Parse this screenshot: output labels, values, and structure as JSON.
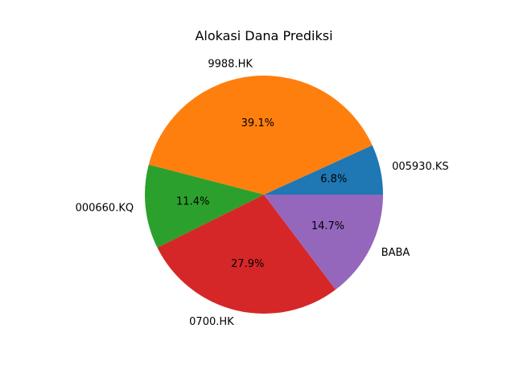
{
  "chart_data": {
    "type": "pie",
    "title": "Alokasi Dana Prediksi",
    "labels": [
      "005930.KS",
      "9988.HK",
      "000660.KQ",
      "0700.HK",
      "BABA"
    ],
    "values": [
      6.8,
      39.1,
      11.4,
      27.9,
      14.7
    ],
    "percent_labels": [
      "6.8%",
      "39.1%",
      "11.4%",
      "27.9%",
      "14.7%"
    ],
    "colors": [
      "#1f77b4",
      "#ff7f0e",
      "#2ca02c",
      "#d62728",
      "#9467bd"
    ],
    "start_angle_deg": 0,
    "direction": "counterclockwise"
  }
}
